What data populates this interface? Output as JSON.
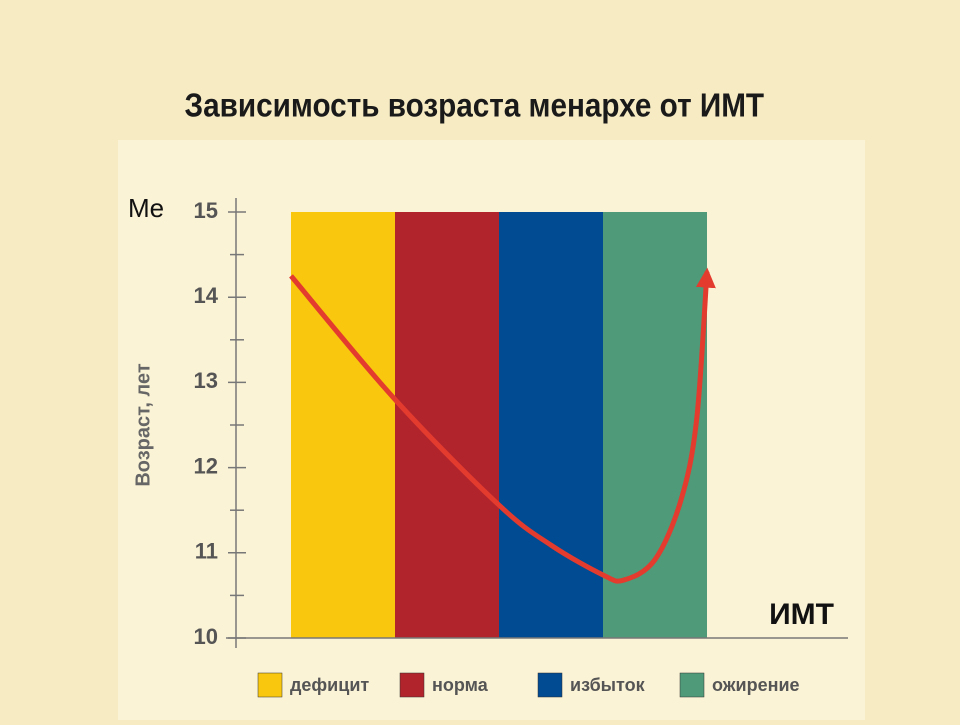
{
  "chart_data": {
    "type": "bar",
    "title": "Зависимость возраста менархе от ИМТ",
    "y_label_short": "Me",
    "y_label": "Возраст, лет",
    "x_label": "ИМТ",
    "categories": [
      "дефицит",
      "норма",
      "избыток",
      "ожирение"
    ],
    "values": [
      15,
      15,
      15,
      15
    ],
    "colors": [
      "#f9c80e",
      "#b1242c",
      "#004b91",
      "#4f9a79"
    ],
    "ylim": [
      10,
      15
    ],
    "yticks": [
      10,
      11,
      12,
      13,
      14,
      15
    ],
    "curve": {
      "type": "line",
      "color": "#e33b2e",
      "xlim": [
        0,
        4
      ],
      "x": [
        0,
        1,
        2,
        2.5,
        3,
        3.2,
        3.5,
        3.75,
        3.9,
        4
      ],
      "values": [
        14.25,
        12.8,
        11.56,
        11.09,
        10.74,
        10.68,
        10.92,
        11.62,
        12.56,
        14.3
      ]
    }
  }
}
